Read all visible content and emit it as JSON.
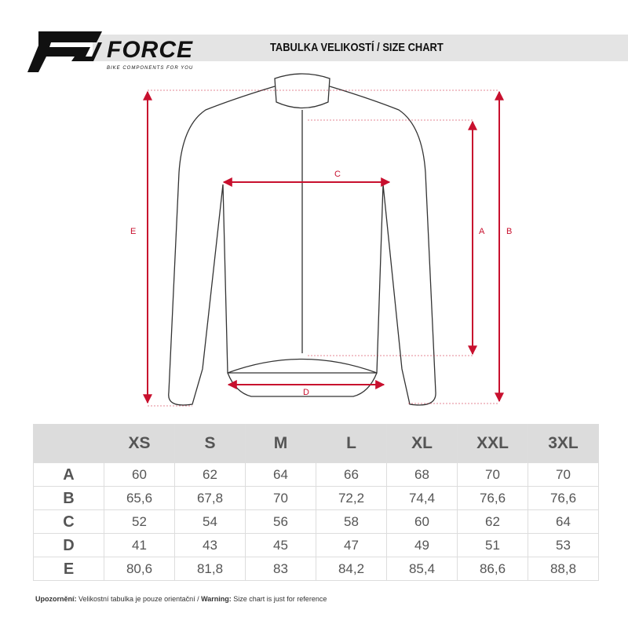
{
  "header": {
    "brand": "FORCE",
    "tagline": "BIKE COMPONENTS FOR YOU",
    "title": "TABULKA VELIKOSTÍ / SIZE CHART"
  },
  "diagram": {
    "labels": {
      "A": "A",
      "B": "B",
      "C": "C",
      "D": "D",
      "E": "E"
    },
    "arrow_color": "#c8102e"
  },
  "table": {
    "columns": [
      "XS",
      "S",
      "M",
      "L",
      "XL",
      "XXL",
      "3XL"
    ],
    "rows": [
      {
        "label": "A",
        "values": [
          "60",
          "62",
          "64",
          "66",
          "68",
          "70",
          "70"
        ]
      },
      {
        "label": "B",
        "values": [
          "65,6",
          "67,8",
          "70",
          "72,2",
          "74,4",
          "76,6",
          "76,6"
        ]
      },
      {
        "label": "C",
        "values": [
          "52",
          "54",
          "56",
          "58",
          "60",
          "62",
          "64"
        ]
      },
      {
        "label": "D",
        "values": [
          "41",
          "43",
          "45",
          "47",
          "49",
          "51",
          "53"
        ]
      },
      {
        "label": "E",
        "values": [
          "80,6",
          "81,8",
          "83",
          "84,2",
          "85,4",
          "86,6",
          "88,8"
        ]
      }
    ]
  },
  "footer": {
    "warning_cz_label": "Upozornění:",
    "warning_cz": " Velikostní tabulka je pouze orientační / ",
    "warning_en_label": "Warning:",
    "warning_en": " Size chart is just for reference"
  }
}
